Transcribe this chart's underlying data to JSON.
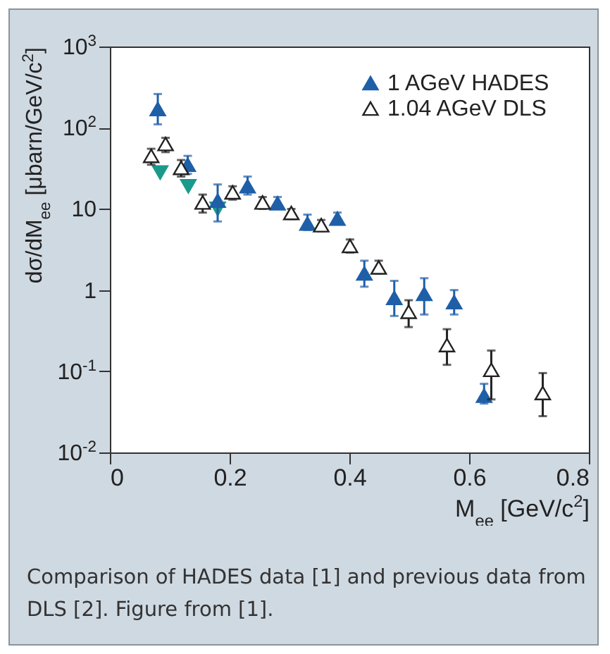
{
  "chart_data": {
    "type": "scatter",
    "xlabel": "M$_{ee}$  [GeV/c$^{2}$]",
    "ylabel": "dσ/dM$_{ee}$  [μbarn/GeV/c$^{2}$]",
    "log": "y",
    "xlim": [
      0,
      0.8
    ],
    "ylim": [
      0.01,
      1000
    ],
    "xticks": [
      0,
      0.2,
      0.4,
      0.6,
      0.8
    ],
    "yticks": [
      {
        "value": 0.01,
        "label": "10$^{-2}$"
      },
      {
        "value": 0.1,
        "label": "10$^{-1}$"
      },
      1,
      10,
      {
        "value": 100,
        "label": "10$^{2}$"
      },
      {
        "value": 1000,
        "label": "10$^{3}$"
      }
    ],
    "grid": false,
    "legend": "top right",
    "marker": "triangle",
    "series": [
      {
        "name": "1 AGeV   HADES",
        "color": "#1f5fa8",
        "x": [
          0.08,
          0.13,
          0.18,
          0.23,
          0.28,
          0.33,
          0.38,
          0.425,
          0.475,
          0.525,
          0.575,
          0.625
        ],
        "values": [
          170,
          35,
          12.6,
          19,
          11.7,
          6.6,
          7.6,
          1.6,
          0.8,
          0.9,
          0.71,
          0.05
        ],
        "errors": [
          [
            110,
            260
          ],
          [
            27,
            45
          ],
          [
            7,
            20
          ],
          [
            15,
            25
          ],
          [
            10,
            14
          ],
          [
            5.5,
            8.5
          ],
          [
            6.5,
            9
          ],
          [
            1.1,
            2.3
          ],
          [
            0.48,
            1.3
          ],
          [
            0.5,
            1.4
          ],
          [
            0.5,
            1.0
          ],
          [
            0.04,
            0.07
          ]
        ]
      },
      {
        "name": "1.04 AGeV   DLS",
        "color": "#222222",
        "marker": "triangle-open",
        "x": [
          0.069,
          0.093,
          0.119,
          0.155,
          0.205,
          0.255,
          0.303,
          0.353,
          0.401,
          0.449,
          0.499,
          0.563,
          0.637,
          0.723
        ],
        "values": [
          45,
          63,
          32,
          12,
          16,
          12,
          8.9,
          6.3,
          3.5,
          1.9,
          0.54,
          0.21,
          0.104,
          0.054
        ],
        "errors": [
          [
            35,
            55
          ],
          [
            50,
            75
          ],
          [
            25,
            40
          ],
          [
            9,
            15
          ],
          [
            13,
            19
          ],
          [
            10,
            14
          ],
          [
            7.5,
            10
          ],
          [
            5.3,
            7.3
          ],
          [
            2.9,
            4.2
          ],
          [
            1.6,
            2.3
          ],
          [
            0.35,
            0.75
          ],
          [
            0.12,
            0.33
          ],
          [
            0.045,
            0.18
          ],
          [
            0.028,
            0.095
          ]
        ]
      },
      {
        "color": "#1a9a8a",
        "marker": "triangle-down",
        "x": [
          0.084,
          0.131,
          0.18
        ],
        "values": [
          28,
          19,
          10
        ]
      }
    ],
    "annotations": [
      "Comparison of HADES data [1] and previous data from DLS [2]. Figure from [1]."
    ]
  }
}
